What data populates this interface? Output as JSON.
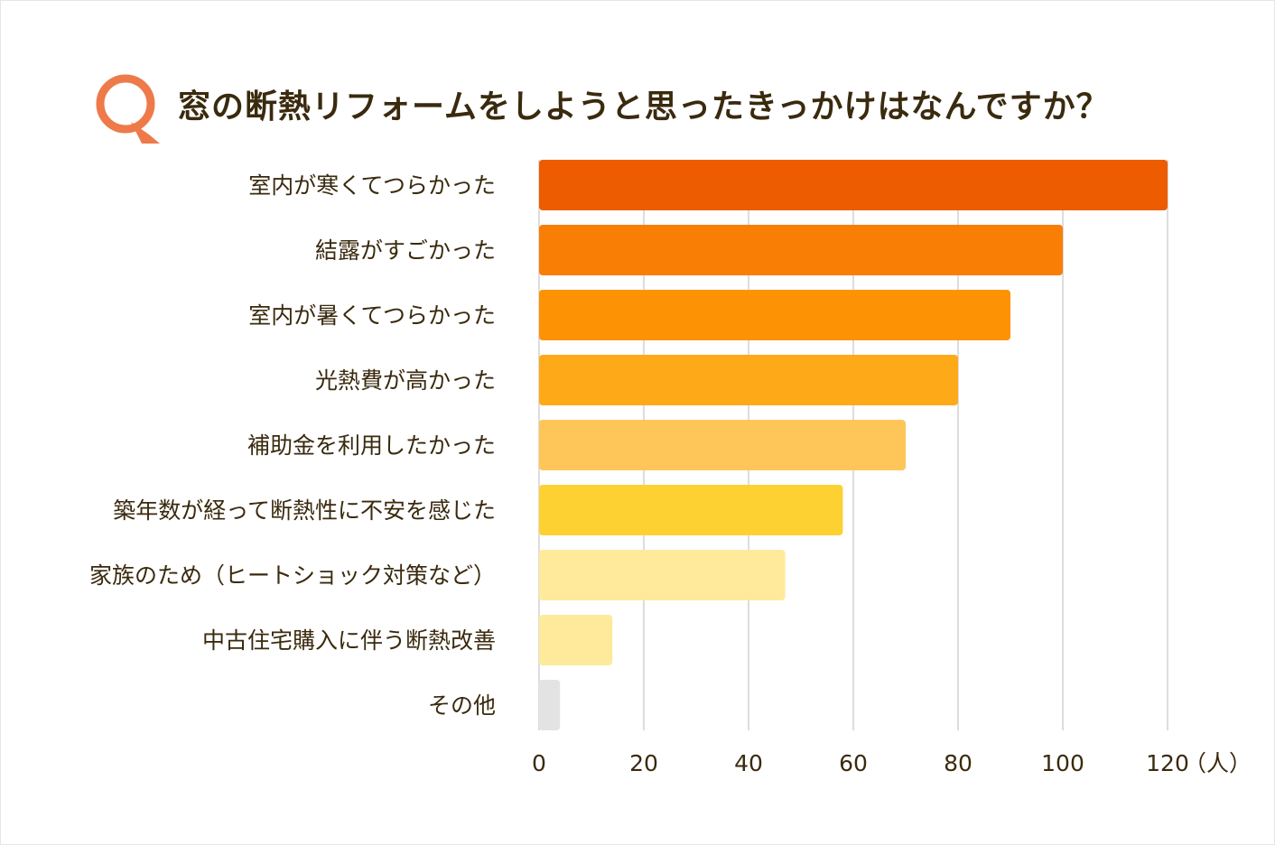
{
  "chart_data": {
    "type": "bar",
    "orientation": "horizontal",
    "title": "窓の断熱リフォームをしようと思ったきっかけはなんですか？",
    "categories": [
      "室内が寒くてつらかった",
      "結露がすごかった",
      "室内が暑くてつらかった",
      "光熱費が高かった",
      "補助金を利用したかった",
      "築年数が経って断熱性に不安を感じた",
      "家族のため（ヒートショック対策など）",
      "中古住宅購入に伴う断熱改善",
      "その他"
    ],
    "values": [
      120,
      100,
      90,
      80,
      70,
      58,
      47,
      14,
      4
    ],
    "colors": [
      "#ed5c00",
      "#f97e05",
      "#fd9205",
      "#fea917",
      "#fec658",
      "#fed133",
      "#feea9a",
      "#feea9a",
      "#e3e3e3"
    ],
    "xlim": [
      0,
      120
    ],
    "xticks": [
      "0",
      "20",
      "40",
      "60",
      "80",
      "100",
      "120"
    ],
    "xunit": "（人）",
    "grid": true,
    "accent_color": "#ee7a4a"
  }
}
